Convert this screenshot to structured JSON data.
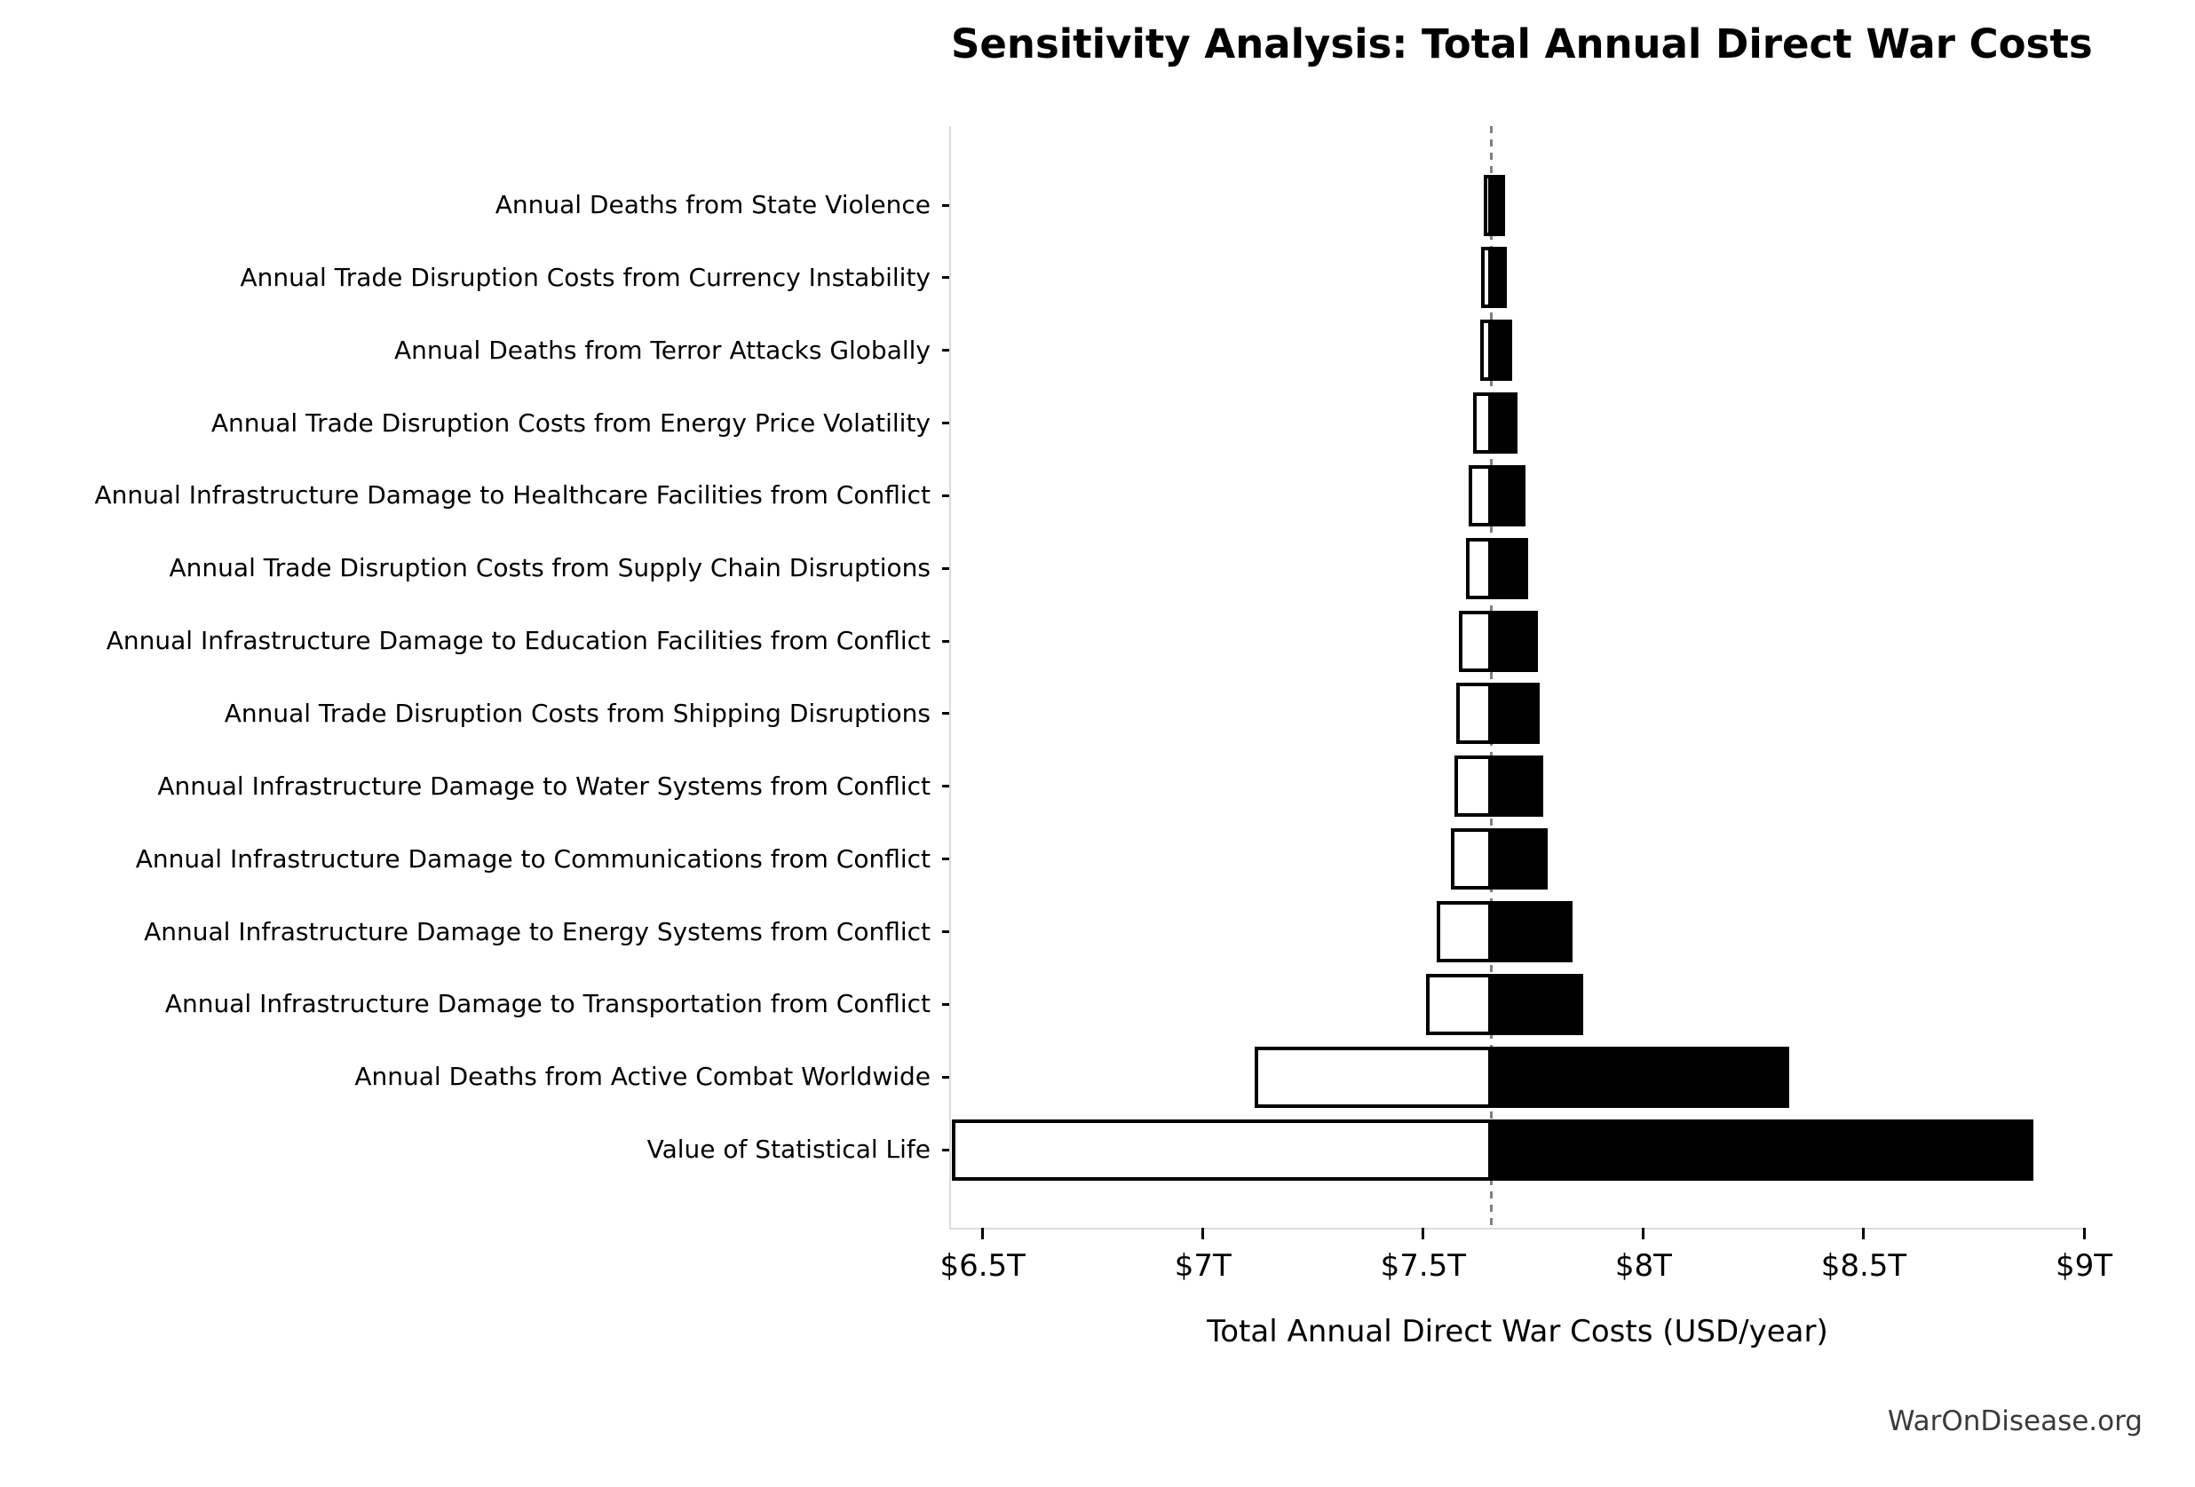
{
  "chart": {
    "title": "Sensitivity Analysis: Total Annual Direct War Costs",
    "xlabel": "Total Annual Direct War Costs (USD/year)"
  },
  "footer": {
    "watermark": "WarOnDisease.org"
  },
  "colors": {
    "bar_high_fill": "#000000",
    "bar_low_fill": "#ffffff",
    "bar_low_edge": "#000000",
    "baseline_line": "#7f7f7f",
    "axis_spine": "#dcdcdc",
    "tick_mark": "#000000",
    "text": "#000000",
    "watermark_text": "#3a3a3a"
  },
  "chart_data": {
    "type": "bar",
    "subtype": "tornado-horizontal",
    "title": "Sensitivity Analysis: Total Annual Direct War Costs",
    "xlabel": "Total Annual Direct War Costs (USD/year)",
    "ylabel": "",
    "units": "trillion USD per year",
    "baseline_value": 7.655,
    "xlim": [
      6.428,
      9.0
    ],
    "grid": false,
    "legend": false,
    "x_ticks": [
      {
        "value": 6.5,
        "label": "$6.5T"
      },
      {
        "value": 7.0,
        "label": "$7T"
      },
      {
        "value": 7.5,
        "label": "$7.5T"
      },
      {
        "value": 8.0,
        "label": "$8T"
      },
      {
        "value": 8.5,
        "label": "$8.5T"
      },
      {
        "value": 9.0,
        "label": "$9T"
      }
    ],
    "rows": [
      {
        "label": "Annual Deaths from State Violence",
        "low": 7.638,
        "high": 7.685
      },
      {
        "label": "Annual Trade Disruption Costs from Currency Instability",
        "low": 7.631,
        "high": 7.689
      },
      {
        "label": "Annual Deaths from Terror Attacks Globally",
        "low": 7.629,
        "high": 7.701
      },
      {
        "label": "Annual Trade Disruption Costs from Energy Price Volatility",
        "low": 7.614,
        "high": 7.715
      },
      {
        "label": "Annual Infrastructure Damage to Healthcare Facilities from Conflict",
        "low": 7.603,
        "high": 7.732
      },
      {
        "label": "Annual Trade Disruption Costs from Supply Chain Disruptions",
        "low": 7.597,
        "high": 7.739
      },
      {
        "label": "Annual Infrastructure Damage to Education Facilities from Conflict",
        "low": 7.581,
        "high": 7.76
      },
      {
        "label": "Annual Trade Disruption Costs from Shipping Disruptions",
        "low": 7.575,
        "high": 7.765
      },
      {
        "label": "Annual Infrastructure Damage to Water Systems from Conflict",
        "low": 7.57,
        "high": 7.773
      },
      {
        "label": "Annual Infrastructure Damage to Communications from Conflict",
        "low": 7.562,
        "high": 7.783
      },
      {
        "label": "Annual Infrastructure Damage to Energy Systems from Conflict",
        "low": 7.53,
        "high": 7.838
      },
      {
        "label": "Annual Infrastructure Damage to Transportation from Conflict",
        "low": 7.507,
        "high": 7.864
      },
      {
        "label": "Annual Deaths from Active Combat Worldwide",
        "low": 7.118,
        "high": 8.33
      },
      {
        "label": "Value of Statistical Life",
        "low": 6.431,
        "high": 8.885
      }
    ]
  }
}
